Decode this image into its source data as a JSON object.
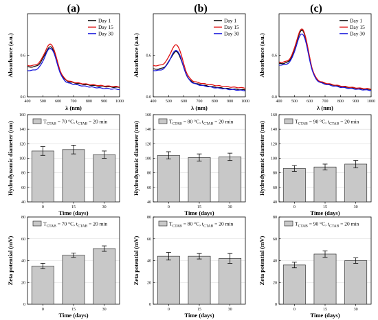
{
  "panel_labels": [
    "(a)",
    "(b)",
    "(c)"
  ],
  "colors": {
    "day1": "#111111",
    "day15": "#e01010",
    "day30": "#1a1adc",
    "bar_fill": "#c8c8c8",
    "bar_stroke": "#333333",
    "grid": "#d9d9d9"
  },
  "chart_data": [
    {
      "panel": "a",
      "type": "line",
      "xlabel": "λ (nm)",
      "ylabel": "Absorbance (a.u.)",
      "xlim": [
        400,
        1000
      ],
      "ylim": [
        0,
        1.2
      ],
      "xticks": [
        400,
        500,
        600,
        700,
        800,
        900,
        1000
      ],
      "yticks": [
        0.0,
        0.6
      ],
      "legend": "top-right",
      "series": [
        {
          "name": "Day 1",
          "color": "#111111",
          "base": 0.43,
          "peak": 0.72,
          "tail": 0.11
        },
        {
          "name": "Day 15",
          "color": "#e01010",
          "base": 0.45,
          "peak": 0.76,
          "tail": 0.12
        },
        {
          "name": "Day 30",
          "color": "#1a1adc",
          "base": 0.38,
          "peak": 0.7,
          "tail": 0.08
        }
      ]
    },
    {
      "panel": "b",
      "type": "line",
      "xlabel": "λ (nm)",
      "ylabel": "Absorbance (a.u.)",
      "xlim": [
        400,
        1000
      ],
      "ylim": [
        0,
        1.2
      ],
      "xticks": [
        400,
        500,
        600,
        700,
        800,
        900,
        1000
      ],
      "yticks": [
        0.0,
        0.6
      ],
      "legend": "top-right",
      "series": [
        {
          "name": "Day 1",
          "color": "#111111",
          "base": 0.4,
          "peak": 0.65,
          "tail": 0.07
        },
        {
          "name": "Day 15",
          "color": "#e01010",
          "base": 0.45,
          "peak": 0.75,
          "tail": 0.1
        },
        {
          "name": "Day 30",
          "color": "#1a1adc",
          "base": 0.38,
          "peak": 0.67,
          "tail": 0.06
        }
      ]
    },
    {
      "panel": "c",
      "type": "line",
      "xlabel": "λ (nm)",
      "ylabel": "Absorbance (a.u.)",
      "xlim": [
        400,
        1000
      ],
      "ylim": [
        0,
        1.2
      ],
      "xticks": [
        400,
        500,
        600,
        700,
        800,
        900,
        1000
      ],
      "yticks": [
        0.0,
        0.6
      ],
      "legend": "top-right",
      "series": [
        {
          "name": "Day 1",
          "color": "#111111",
          "base": 0.48,
          "peak": 0.96,
          "tail": 0.07
        },
        {
          "name": "Day 15",
          "color": "#e01010",
          "base": 0.5,
          "peak": 0.98,
          "tail": 0.08
        },
        {
          "name": "Day 30",
          "color": "#1a1adc",
          "base": 0.46,
          "peak": 0.91,
          "tail": 0.06
        }
      ]
    },
    {
      "panel": "a",
      "type": "bar",
      "categories": [
        "0",
        "15",
        "30"
      ],
      "values": [
        110,
        112,
        105
      ],
      "errors": [
        6,
        6,
        5
      ],
      "xlabel": "Time (days)",
      "ylabel": "Hydrodynamic diameter (nm)",
      "ylim": [
        40,
        160
      ],
      "yticks": [
        40,
        60,
        80,
        100,
        120,
        140,
        160
      ],
      "legend": "top",
      "legend_label": {
        "prefix": "T",
        "sub1": "CTAB",
        "mid": " = 70 °C, t",
        "sub2": "CTAB",
        "suffix": " = 20 min"
      }
    },
    {
      "panel": "b",
      "type": "bar",
      "categories": [
        "0",
        "15",
        "30"
      ],
      "values": [
        104,
        101,
        102
      ],
      "errors": [
        5,
        5,
        5
      ],
      "xlabel": "Time (days)",
      "ylabel": "Hydrodynamic diameter (nm)",
      "ylim": [
        40,
        160
      ],
      "yticks": [
        40,
        60,
        80,
        100,
        120,
        140,
        160
      ],
      "legend": "top",
      "legend_label": {
        "prefix": "T",
        "sub1": "CTAB",
        "mid": " = 80 °C, t",
        "sub2": "CTAB",
        "suffix": " = 20 min"
      }
    },
    {
      "panel": "c",
      "type": "bar",
      "categories": [
        "0",
        "15",
        "30"
      ],
      "values": [
        86,
        88,
        92
      ],
      "errors": [
        4,
        4,
        5
      ],
      "xlabel": "Time (days)",
      "ylabel": "Hydrodynamic diameter (nm)",
      "ylim": [
        40,
        160
      ],
      "yticks": [
        40,
        60,
        80,
        100,
        120,
        140,
        160
      ],
      "legend": "top",
      "legend_label": {
        "prefix": "T",
        "sub1": "CTAB",
        "mid": " = 90 °C, t",
        "sub2": "CTAB",
        "suffix": " = 20 min"
      }
    },
    {
      "panel": "a",
      "type": "bar",
      "categories": [
        "0",
        "15",
        "30"
      ],
      "values": [
        35,
        45,
        51
      ],
      "errors": [
        2.5,
        2,
        2.5
      ],
      "xlabel": "Time (days)",
      "ylabel": "Zeta potential (mV)",
      "ylim": [
        0,
        80
      ],
      "yticks": [
        0,
        20,
        40,
        60,
        80
      ],
      "legend": "top",
      "legend_label": {
        "prefix": "T",
        "sub1": "CTAB",
        "mid": " = 70 °C, t",
        "sub2": "CTAB",
        "suffix": " = 20 min"
      }
    },
    {
      "panel": "b",
      "type": "bar",
      "categories": [
        "0",
        "15",
        "30"
      ],
      "values": [
        44,
        44,
        42
      ],
      "errors": [
        3.5,
        2.5,
        4.5
      ],
      "xlabel": "Time (days)",
      "ylabel": "Zeta potential (mV)",
      "ylim": [
        0,
        80
      ],
      "yticks": [
        0,
        20,
        40,
        60,
        80
      ],
      "legend": "top",
      "legend_label": {
        "prefix": "T",
        "sub1": "CTAB",
        "mid": " = 80 °C, t",
        "sub2": "CTAB",
        "suffix": " = 20 min"
      }
    },
    {
      "panel": "c",
      "type": "bar",
      "categories": [
        "0",
        "15",
        "30"
      ],
      "values": [
        36,
        46,
        40
      ],
      "errors": [
        2.5,
        3,
        2.5
      ],
      "xlabel": "Time (days)",
      "ylabel": "Zeta potential (mV)",
      "ylim": [
        0,
        80
      ],
      "yticks": [
        0,
        20,
        40,
        60,
        80
      ],
      "legend": "top",
      "legend_label": {
        "prefix": "T",
        "sub1": "CTAB",
        "mid": " = 90 °C, t",
        "sub2": "CTAB",
        "suffix": " = 20 min"
      }
    }
  ]
}
